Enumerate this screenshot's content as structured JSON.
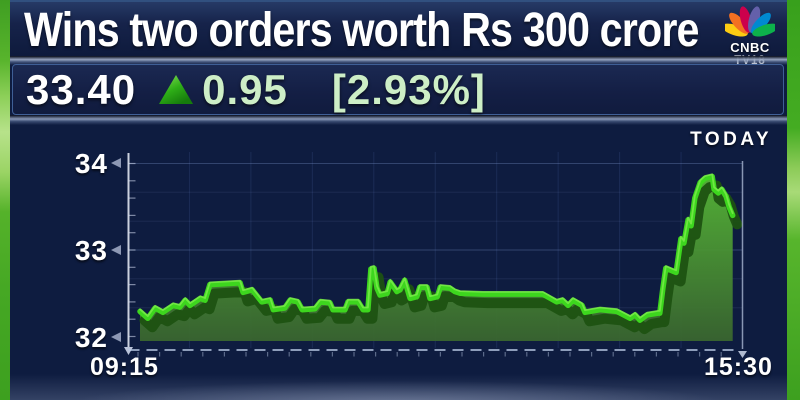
{
  "header": {
    "title": "Wins two orders worth Rs 300 crore",
    "logo": {
      "line1": "CNBC",
      "line2": "TV18",
      "peacock_colors": [
        "#fccc12",
        "#f37021",
        "#cc004c",
        "#6460aa",
        "#0089d0",
        "#0db14b"
      ]
    }
  },
  "quote": {
    "price": "33.40",
    "direction": "up",
    "change": "0.95",
    "change_pct": "[2.93%]",
    "up_color": "#2eae17",
    "text_color": "#cdeec6"
  },
  "chart_data": {
    "type": "area",
    "title": "TODAY",
    "x_axis": {
      "start_label": "09:15",
      "end_label": "15:30"
    },
    "y_axis": {
      "labels": [
        "34",
        "33",
        "32"
      ],
      "min": 32,
      "max": 34,
      "tick_step": 0.2
    },
    "legend": "none",
    "grid": "on",
    "colors": {
      "line": "#3dd61e",
      "line_highlight": "#86ee52",
      "line_shadow": "#1d5212",
      "area_top": "#58bb35",
      "area_bottom": "#39652f",
      "background": "#0e1c40",
      "axis": "#cdd6ea"
    },
    "series": [
      {
        "name": "price_today",
        "points": [
          [
            0.0,
            32.29
          ],
          [
            0.013,
            32.21
          ],
          [
            0.025,
            32.33
          ],
          [
            0.038,
            32.28
          ],
          [
            0.055,
            32.36
          ],
          [
            0.066,
            32.34
          ],
          [
            0.075,
            32.42
          ],
          [
            0.083,
            32.36
          ],
          [
            0.1,
            32.44
          ],
          [
            0.108,
            32.42
          ],
          [
            0.116,
            32.6
          ],
          [
            0.166,
            32.62
          ],
          [
            0.171,
            32.51
          ],
          [
            0.186,
            32.54
          ],
          [
            0.202,
            32.4
          ],
          [
            0.216,
            32.42
          ],
          [
            0.221,
            32.31
          ],
          [
            0.24,
            32.33
          ],
          [
            0.249,
            32.42
          ],
          [
            0.262,
            32.4
          ],
          [
            0.269,
            32.31
          ],
          [
            0.29,
            32.32
          ],
          [
            0.299,
            32.4
          ],
          [
            0.315,
            32.39
          ],
          [
            0.32,
            32.31
          ],
          [
            0.34,
            32.31
          ],
          [
            0.345,
            32.4
          ],
          [
            0.362,
            32.4
          ],
          [
            0.37,
            32.31
          ],
          [
            0.378,
            32.31
          ],
          [
            0.383,
            32.78
          ],
          [
            0.388,
            32.79
          ],
          [
            0.393,
            32.56
          ],
          [
            0.398,
            32.48
          ],
          [
            0.41,
            32.5
          ],
          [
            0.415,
            32.63
          ],
          [
            0.426,
            32.52
          ],
          [
            0.431,
            32.54
          ],
          [
            0.439,
            32.65
          ],
          [
            0.448,
            32.44
          ],
          [
            0.459,
            32.46
          ],
          [
            0.464,
            32.57
          ],
          [
            0.476,
            32.57
          ],
          [
            0.481,
            32.44
          ],
          [
            0.493,
            32.46
          ],
          [
            0.498,
            32.57
          ],
          [
            0.514,
            32.56
          ],
          [
            0.522,
            32.52
          ],
          [
            0.531,
            32.5
          ],
          [
            0.569,
            32.49
          ],
          [
            0.668,
            32.49
          ],
          [
            0.691,
            32.4
          ],
          [
            0.701,
            32.42
          ],
          [
            0.71,
            32.36
          ],
          [
            0.718,
            32.42
          ],
          [
            0.733,
            32.36
          ],
          [
            0.738,
            32.28
          ],
          [
            0.763,
            32.31
          ],
          [
            0.791,
            32.29
          ],
          [
            0.813,
            32.21
          ],
          [
            0.821,
            32.25
          ],
          [
            0.829,
            32.19
          ],
          [
            0.841,
            32.25
          ],
          [
            0.859,
            32.27
          ],
          [
            0.862,
            32.27
          ],
          [
            0.867,
            32.55
          ],
          [
            0.872,
            32.79
          ],
          [
            0.889,
            32.74
          ],
          [
            0.897,
            33.13
          ],
          [
            0.902,
            33.08
          ],
          [
            0.909,
            33.35
          ],
          [
            0.914,
            33.28
          ],
          [
            0.92,
            33.6
          ],
          [
            0.929,
            33.78
          ],
          [
            0.937,
            33.83
          ],
          [
            0.949,
            33.85
          ],
          [
            0.952,
            33.7
          ],
          [
            0.959,
            33.66
          ],
          [
            0.965,
            33.7
          ],
          [
            0.972,
            33.62
          ],
          [
            0.977,
            33.5
          ],
          [
            0.983,
            33.4
          ]
        ]
      }
    ]
  }
}
